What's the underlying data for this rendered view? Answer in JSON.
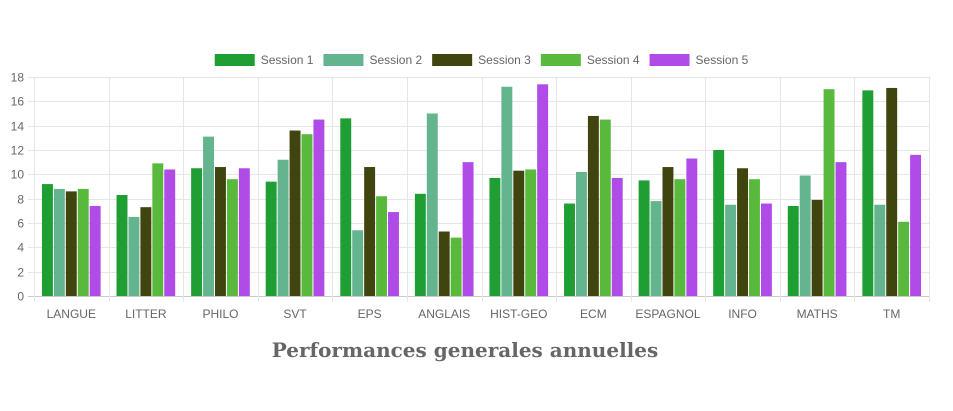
{
  "chart_data": {
    "type": "bar",
    "title": "Performances generales annuelles",
    "xlabel": "",
    "ylabel": "",
    "ylim": [
      0,
      18
    ],
    "yticks": [
      0,
      2,
      4,
      6,
      8,
      10,
      12,
      14,
      16,
      18
    ],
    "grid": true,
    "legend_position": "top",
    "categories": [
      "LANGUE",
      "LITTER",
      "PHILO",
      "SVT",
      "EPS",
      "ANGLAIS",
      "HIST-GEO",
      "ECM",
      "ESPAGNOL",
      "INFO",
      "MATHS",
      "TM"
    ],
    "series": [
      {
        "name": "Session 1",
        "color": "#1f9e34",
        "values": [
          9.2,
          8.3,
          10.5,
          9.4,
          14.6,
          8.4,
          9.7,
          7.6,
          9.5,
          12.0,
          7.4,
          16.9
        ]
      },
      {
        "name": "Session 2",
        "color": "#64b48f",
        "values": [
          8.8,
          6.5,
          13.1,
          11.2,
          5.4,
          15.0,
          17.2,
          10.2,
          7.8,
          7.5,
          9.9,
          7.5
        ]
      },
      {
        "name": "Session 3",
        "color": "#40450f",
        "values": [
          8.6,
          7.3,
          10.6,
          13.6,
          10.6,
          5.3,
          10.3,
          14.8,
          10.6,
          10.5,
          7.9,
          17.1
        ]
      },
      {
        "name": "Session 4",
        "color": "#59b93c",
        "values": [
          8.8,
          10.9,
          9.6,
          13.3,
          8.2,
          4.8,
          10.4,
          14.5,
          9.6,
          9.6,
          17.0,
          6.1
        ]
      },
      {
        "name": "Session 5",
        "color": "#b04be8",
        "values": [
          7.4,
          10.4,
          10.5,
          14.5,
          6.9,
          11.0,
          17.4,
          9.7,
          11.3,
          7.6,
          11.0,
          11.6
        ]
      }
    ]
  }
}
